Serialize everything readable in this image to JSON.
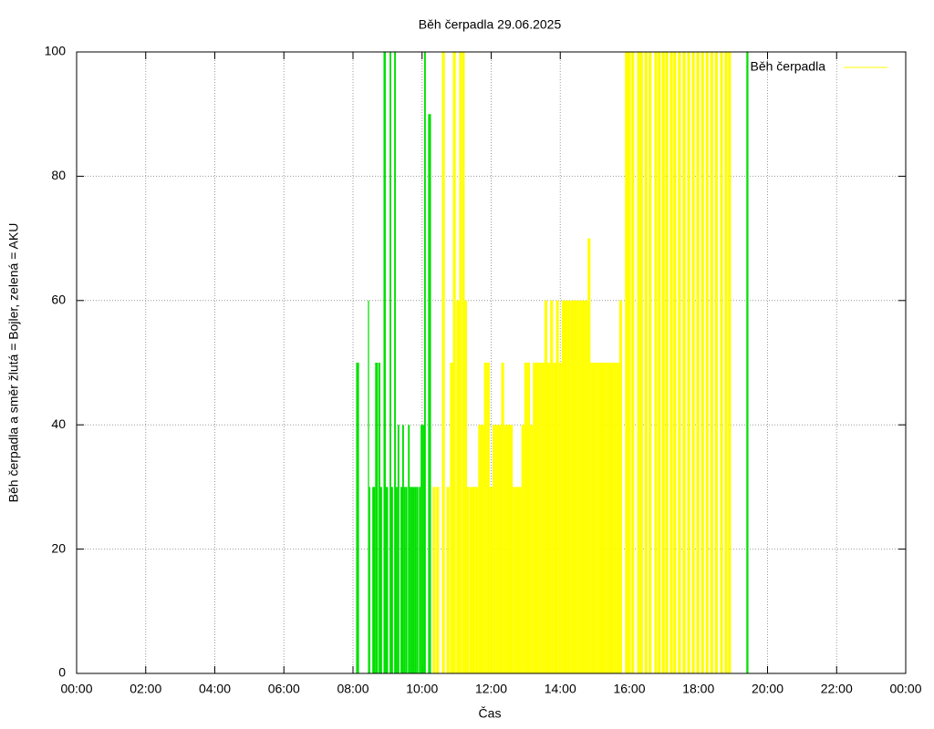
{
  "chart_data": {
    "type": "impulse",
    "title": "Běh čerpadla 29.06.2025",
    "xlabel": "Čas",
    "ylabel": "Běh čerpadla a směr žlutá = Bojler, zelená = AKU",
    "xlim": [
      0,
      1440
    ],
    "ylim": [
      0,
      100
    ],
    "grid": true,
    "legend": "top-right",
    "xticks": [
      {
        "value": 0,
        "label": "00:00"
      },
      {
        "value": 120,
        "label": "02:00"
      },
      {
        "value": 240,
        "label": "04:00"
      },
      {
        "value": 360,
        "label": "06:00"
      },
      {
        "value": 480,
        "label": "08:00"
      },
      {
        "value": 600,
        "label": "10:00"
      },
      {
        "value": 720,
        "label": "12:00"
      },
      {
        "value": 840,
        "label": "14:00"
      },
      {
        "value": 960,
        "label": "16:00"
      },
      {
        "value": 1080,
        "label": "18:00"
      },
      {
        "value": 1200,
        "label": "20:00"
      },
      {
        "value": 1320,
        "label": "22:00"
      },
      {
        "value": 1440,
        "label": "00:00"
      }
    ],
    "yticks": [
      0,
      20,
      40,
      60,
      80,
      100
    ],
    "series": [
      {
        "name": "Běh čerpadla",
        "color": "#ffff00",
        "x": [
          621,
          627,
          637,
          645,
          651,
          656,
          662,
          667,
          672,
          676,
          680,
          685,
          690,
          695,
          700,
          705,
          710,
          715,
          720,
          725,
          730,
          735,
          740,
          745,
          750,
          755,
          760,
          765,
          770,
          775,
          780,
          785,
          790,
          795,
          800,
          805,
          810,
          815,
          820,
          825,
          830,
          835,
          840,
          845,
          850,
          855,
          860,
          865,
          870,
          875,
          880,
          885,
          890,
          895,
          900,
          905,
          910,
          915,
          920,
          925,
          930,
          935,
          940,
          945,
          955,
          960,
          966,
          976,
          981,
          989,
          996,
          1006,
          1012,
          1019,
          1025,
          1033,
          1039,
          1047,
          1055,
          1063,
          1071,
          1079,
          1087,
          1095,
          1103,
          1111,
          1120,
          1128,
          1134
        ],
        "values": [
          30,
          30,
          100,
          30,
          50,
          100,
          60,
          100,
          100,
          60,
          30,
          30,
          30,
          30,
          40,
          40,
          50,
          50,
          30,
          40,
          40,
          40,
          50,
          40,
          40,
          40,
          30,
          30,
          30,
          40,
          50,
          50,
          40,
          50,
          50,
          50,
          50,
          60,
          50,
          60,
          50,
          60,
          50,
          60,
          60,
          60,
          60,
          60,
          60,
          60,
          60,
          60,
          70,
          50,
          50,
          50,
          50,
          50,
          50,
          50,
          50,
          50,
          50,
          60,
          100,
          100,
          100,
          100,
          100,
          100,
          100,
          100,
          100,
          100,
          100,
          100,
          100,
          100,
          100,
          100,
          100,
          100,
          100,
          100,
          100,
          100,
          100,
          100,
          100
        ]
      },
      {
        "color": "#00e000",
        "x": [
          488,
          507,
          509,
          516,
          521,
          526,
          529,
          535,
          539,
          545,
          548,
          553,
          556,
          559,
          564,
          567,
          570,
          573,
          577,
          580,
          583,
          586,
          589,
          592,
          596,
          599,
          602,
          605,
          613,
          1164,
          1165,
          1166
        ],
        "values": [
          50,
          60,
          30,
          30,
          50,
          50,
          30,
          100,
          30,
          100,
          30,
          100,
          30,
          40,
          30,
          40,
          30,
          30,
          40,
          30,
          30,
          30,
          30,
          30,
          30,
          40,
          40,
          100,
          90,
          100,
          100,
          100
        ]
      }
    ]
  }
}
